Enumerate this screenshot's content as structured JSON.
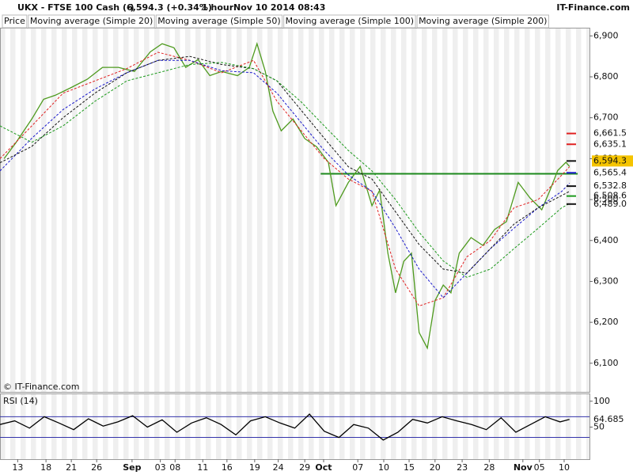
{
  "chart_data": [
    {
      "type": "line",
      "title": "UKX - FTSE 100 Cash (-)",
      "last_price": "6,594.3 (+0.34%)",
      "interval": "1 hour",
      "timestamp": "Nov 10 2014 08:43",
      "source": "IT-Finance.com",
      "copyright": "© IT-Finance.com",
      "xlim": [
        0,
        100
      ],
      "ylim": [
        6030,
        6920
      ],
      "yticks": [
        {
          "value": 6100,
          "label": "6,100"
        },
        {
          "value": 6200,
          "label": "6,200"
        },
        {
          "value": 6300,
          "label": "6,300"
        },
        {
          "value": 6400,
          "label": "6,400"
        },
        {
          "value": 6500,
          "label": "6,500"
        },
        {
          "value": 6600,
          "label": "6,600"
        },
        {
          "value": 6700,
          "label": "6,700"
        },
        {
          "value": 6800,
          "label": "6,800"
        },
        {
          "value": 6900,
          "label": "6,900"
        }
      ],
      "xticks": [
        {
          "value": 3,
          "label": "13"
        },
        {
          "value": 7.8,
          "label": "18"
        },
        {
          "value": 12.1,
          "label": "21"
        },
        {
          "value": 16.4,
          "label": "26"
        },
        {
          "value": 22.4,
          "label": "Sep"
        },
        {
          "value": 27.2,
          "label": "03"
        },
        {
          "value": 29.7,
          "label": "08"
        },
        {
          "value": 34.4,
          "label": "11"
        },
        {
          "value": 38.5,
          "label": "16"
        },
        {
          "value": 43.2,
          "label": "19"
        },
        {
          "value": 47.2,
          "label": "24"
        },
        {
          "value": 51.7,
          "label": "29"
        },
        {
          "value": 54.9,
          "label": "Oct"
        },
        {
          "value": 60.7,
          "label": "07"
        },
        {
          "value": 65.1,
          "label": "10"
        },
        {
          "value": 69.4,
          "label": "15"
        },
        {
          "value": 73.8,
          "label": "20"
        },
        {
          "value": 78.4,
          "label": "23"
        },
        {
          "value": 83,
          "label": "28"
        },
        {
          "value": 88.7,
          "label": "Nov"
        },
        {
          "value": 91.5,
          "label": "05"
        },
        {
          "value": 95.7,
          "label": "10"
        }
      ],
      "series": [
        {
          "name": "Price",
          "color": "#4e9a1e",
          "x": [
            0.7,
            2.7,
            5.4,
            7.4,
            9.4,
            12.1,
            14.8,
            17.4,
            20.1,
            22.8,
            25.5,
            27.5,
            29.5,
            31.5,
            33.6,
            35.6,
            37.6,
            40.3,
            42.3,
            43.6,
            45,
            46.3,
            47.7,
            49.7,
            51.7,
            53.7,
            55.7,
            57,
            59.1,
            61.1,
            63.1,
            64.4,
            65.8,
            67.1,
            68.5,
            69.8,
            71.1,
            72.5,
            73.8,
            75.2,
            76.5,
            77.9,
            79.9,
            81.9,
            83.9,
            85.9,
            87.9,
            89.9,
            91.9,
            93.3,
            94.6,
            96,
            96.6
          ],
          "values": [
            6600,
            6639,
            6697,
            6745,
            6755,
            6774,
            6794,
            6823,
            6823,
            6813,
            6861,
            6881,
            6871,
            6823,
            6842,
            6803,
            6813,
            6803,
            6823,
            6881,
            6813,
            6716,
            6668,
            6697,
            6649,
            6629,
            6591,
            6485,
            6542,
            6581,
            6485,
            6523,
            6369,
            6272,
            6349,
            6369,
            6175,
            6137,
            6253,
            6291,
            6272,
            6369,
            6407,
            6388,
            6427,
            6446,
            6542,
            6504,
            6475,
            6523,
            6571,
            6591,
            6581
          ]
        },
        {
          "name": "Moving average (Simple 20)",
          "color": "#e02020",
          "x": [
            0,
            5.4,
            10.7,
            16.1,
            21.5,
            26.8,
            32.2,
            37.6,
            43,
            47,
            51,
            55,
            59.1,
            63.1,
            67.1,
            71.1,
            75.2,
            79.2,
            83.2,
            87.2,
            91.3,
            95.3,
            96.6
          ],
          "values": [
            6600,
            6680,
            6760,
            6790,
            6820,
            6860,
            6840,
            6810,
            6840,
            6740,
            6670,
            6600,
            6550,
            6520,
            6330,
            6240,
            6260,
            6360,
            6400,
            6480,
            6500,
            6560,
            6580
          ]
        },
        {
          "name": "Moving average (Simple 50)",
          "color": "#1a1acc",
          "x": [
            0,
            5.4,
            10.7,
            16.1,
            21.5,
            26.8,
            32.2,
            37.6,
            43,
            47,
            51,
            55,
            59.1,
            63.1,
            67.1,
            71.1,
            75.2,
            79.2,
            83.2,
            87.2,
            91.3,
            95.3,
            96.6
          ],
          "values": [
            6570,
            6650,
            6720,
            6770,
            6810,
            6840,
            6840,
            6815,
            6810,
            6760,
            6690,
            6620,
            6560,
            6520,
            6430,
            6330,
            6260,
            6320,
            6380,
            6430,
            6480,
            6520,
            6540
          ]
        },
        {
          "name": "Moving average (Simple 100)",
          "color": "#111111",
          "x": [
            0,
            5.4,
            10.7,
            16.1,
            21.5,
            26.8,
            32.2,
            37.6,
            43,
            47,
            51,
            55,
            59.1,
            63.1,
            67.1,
            71.1,
            75.2,
            79.2,
            83.2,
            87.2,
            91.3,
            95.3,
            96.6
          ],
          "values": [
            6590,
            6630,
            6700,
            6760,
            6810,
            6840,
            6850,
            6830,
            6820,
            6790,
            6720,
            6650,
            6580,
            6550,
            6470,
            6390,
            6330,
            6320,
            6380,
            6440,
            6480,
            6510,
            6520
          ]
        },
        {
          "name": "Moving average (Simple 200)",
          "color": "#1c9a1c",
          "x": [
            0,
            5.4,
            10.7,
            16.1,
            21.5,
            26.8,
            32.2,
            37.6,
            43,
            47,
            51,
            55,
            59.1,
            63.1,
            67.1,
            71.1,
            75.2,
            79.2,
            83.2,
            87.2,
            91.3,
            95.3,
            96.6
          ],
          "values": [
            6680,
            6640,
            6680,
            6740,
            6790,
            6810,
            6830,
            6835,
            6820,
            6790,
            6740,
            6680,
            6620,
            6570,
            6500,
            6420,
            6350,
            6310,
            6330,
            6380,
            6430,
            6480,
            6490
          ]
        }
      ],
      "level": {
        "value": 6563,
        "color": "#1c8a1c",
        "x": [
          54.4,
          98
        ]
      },
      "price_labels": [
        {
          "value": 6661.5,
          "label": "6,661.5",
          "color": "#e02020"
        },
        {
          "value": 6635.1,
          "label": "6,635.1",
          "color": "#e02020"
        },
        {
          "value": 6594.3,
          "label": "6,594.3",
          "color": "#111111",
          "highlight": "#f5c400"
        },
        {
          "value": 6565.4,
          "label": "6,565.4",
          "color": "#1a1acc"
        },
        {
          "value": 6532.8,
          "label": "6,532.8",
          "color": "#111111"
        },
        {
          "value": 6508.6,
          "label": "6,508.6",
          "color": "#1c9a1c"
        },
        {
          "value": 6489.0,
          "label": "6,489.0",
          "color": "#111111"
        }
      ]
    },
    {
      "type": "line",
      "title": "RSI (14)",
      "xlim": [
        0,
        100
      ],
      "ylim": [
        -12,
        115
      ],
      "yticks": [
        50,
        100
      ],
      "levels": [
        70,
        30
      ],
      "last_value": 64.685,
      "series": [
        {
          "color": "#000000",
          "x": [
            0,
            2.5,
            5,
            7.5,
            10,
            12.5,
            15,
            17.5,
            20,
            22.5,
            25,
            27.5,
            30,
            32.5,
            35,
            37.5,
            40,
            42.5,
            45,
            47.5,
            50,
            52.5,
            55,
            57.5,
            60,
            62.5,
            65,
            67.5,
            70,
            72.5,
            75,
            77.5,
            80,
            82.5,
            85,
            87.5,
            90,
            92.5,
            95,
            96.6
          ],
          "values": [
            55,
            62,
            48,
            70,
            58,
            45,
            66,
            52,
            60,
            72,
            50,
            64,
            40,
            58,
            68,
            55,
            35,
            62,
            70,
            58,
            48,
            75,
            42,
            30,
            55,
            48,
            25,
            40,
            65,
            58,
            70,
            62,
            55,
            45,
            68,
            40,
            55,
            70,
            60,
            65
          ]
        }
      ]
    }
  ]
}
